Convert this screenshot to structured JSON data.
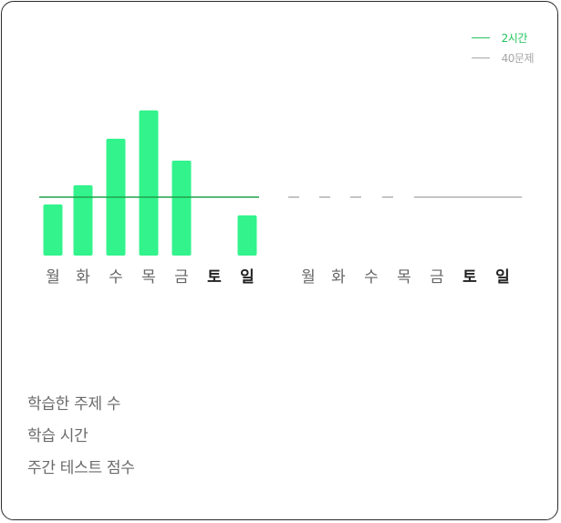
{
  "legend": {
    "items": [
      {
        "label": "2시간",
        "color": "#22c55e"
      },
      {
        "label": "40문제",
        "color": "#a7a7a7"
      }
    ]
  },
  "chart_data": {
    "type": "bar",
    "categories": [
      "월",
      "화",
      "수",
      "목",
      "금",
      "토",
      "일"
    ],
    "values": [
      56,
      77,
      128,
      159,
      104,
      0,
      44
    ],
    "target_line": 64,
    "ylim": [
      0,
      170
    ],
    "bar_color": "#33f38c",
    "target_color": "#1fa34a"
  },
  "next_week": {
    "categories": [
      "월",
      "화",
      "수",
      "목",
      "금",
      "토",
      "일"
    ],
    "line_color": "#b0b0b0"
  },
  "weekday_colors": {
    "weekday": "#666666",
    "weekend": "#222222"
  },
  "metrics": {
    "topics": "학습한 주제 수",
    "time": "학습 시간",
    "test": "주간 테스트 점수"
  }
}
